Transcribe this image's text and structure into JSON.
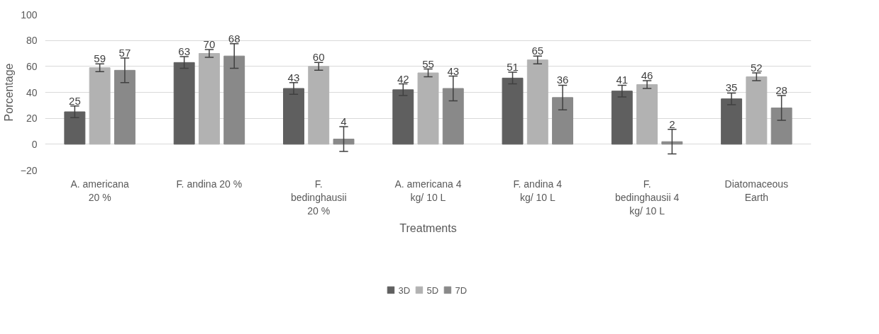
{
  "chart_data": {
    "type": "bar",
    "xlabel": "Treatments",
    "ylabel": "Porcentage",
    "categories": [
      "A. americana 20 %",
      "F. andina 20 %",
      "F. bedinghausii 20 %",
      "A. americana 4 kg/ 10 L",
      "F. andina 4 kg/ 10 L",
      "F. bedinghausii 4 kg/ 10 L",
      "Diatomaceous Earth"
    ],
    "series": [
      {
        "name": "3D",
        "color": "#5f5f5f",
        "values": [
          25,
          63,
          43,
          42,
          51,
          41,
          35
        ],
        "errors": [
          4.5,
          4.5,
          4.5,
          4.5,
          4.5,
          4.5,
          4.5
        ]
      },
      {
        "name": "5D",
        "color": "#b2b2b2",
        "values": [
          59,
          70,
          60,
          55,
          65,
          46,
          52
        ],
        "errors": [
          3,
          3,
          3,
          3,
          3,
          3,
          3
        ]
      },
      {
        "name": "7D",
        "color": "#898989",
        "values": [
          57,
          68,
          4,
          43,
          36,
          2,
          28
        ],
        "errors": [
          9.5,
          9.5,
          9.5,
          9.5,
          9.5,
          9.5,
          9.5
        ]
      }
    ],
    "ylim": [
      -20,
      100
    ],
    "yticks": [
      -20,
      0,
      20,
      40,
      60,
      80,
      100
    ],
    "grid": "y",
    "legend": "bottom",
    "data_labels": true
  }
}
